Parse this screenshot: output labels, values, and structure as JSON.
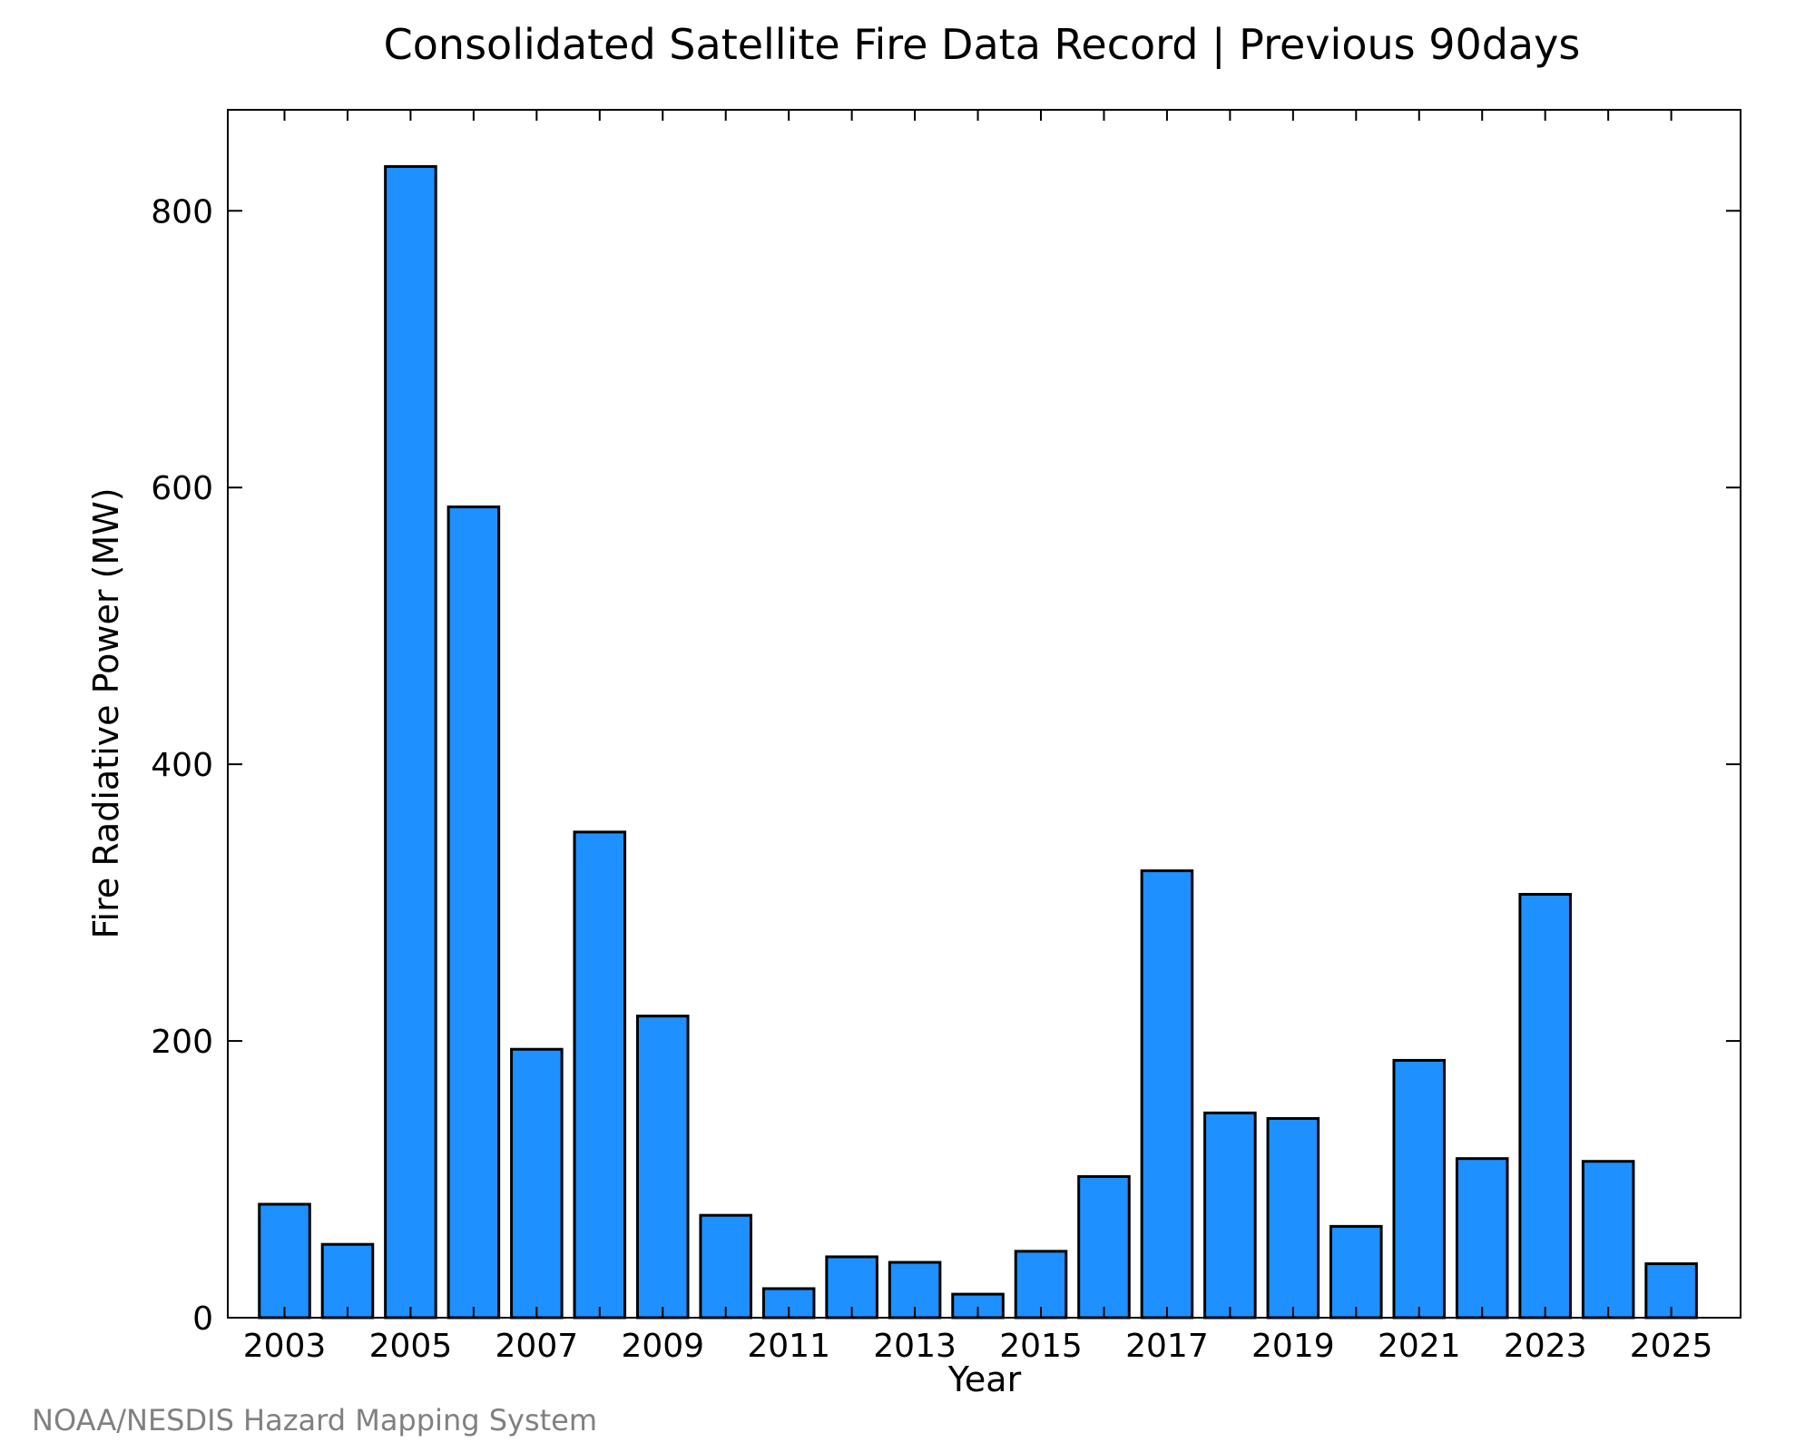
{
  "chart_data": {
    "type": "bar",
    "title": "Consolidated Satellite Fire Data Record | Previous 90days",
    "xlabel": "Year",
    "ylabel": "Fire Radiative Power (MW)",
    "categories": [
      "2003",
      "2004",
      "2005",
      "2006",
      "2007",
      "2008",
      "2009",
      "2010",
      "2011",
      "2012",
      "2013",
      "2014",
      "2015",
      "2016",
      "2017",
      "2018",
      "2019",
      "2020",
      "2021",
      "2022",
      "2023",
      "2024",
      "2025"
    ],
    "values": [
      82,
      53,
      832,
      586,
      194,
      351,
      218,
      74,
      21,
      44,
      40,
      17,
      48,
      102,
      323,
      148,
      144,
      66,
      186,
      115,
      306,
      113,
      39
    ],
    "x_tick_labels": [
      "2003",
      "2005",
      "2007",
      "2009",
      "2011",
      "2013",
      "2015",
      "2017",
      "2019",
      "2021",
      "2023",
      "2025"
    ],
    "y_ticks": [
      0,
      200,
      400,
      600,
      800
    ],
    "y_tick_labels": [
      "0",
      "200",
      "400",
      "600",
      "800"
    ],
    "ylim": [
      0,
      873
    ],
    "xlim": [
      2002.1,
      2026.1
    ],
    "grid": false,
    "bar_color": "#1e90ff",
    "bar_edge_color": "#000000"
  },
  "credit": "NOAA/NESDIS Hazard Mapping System"
}
